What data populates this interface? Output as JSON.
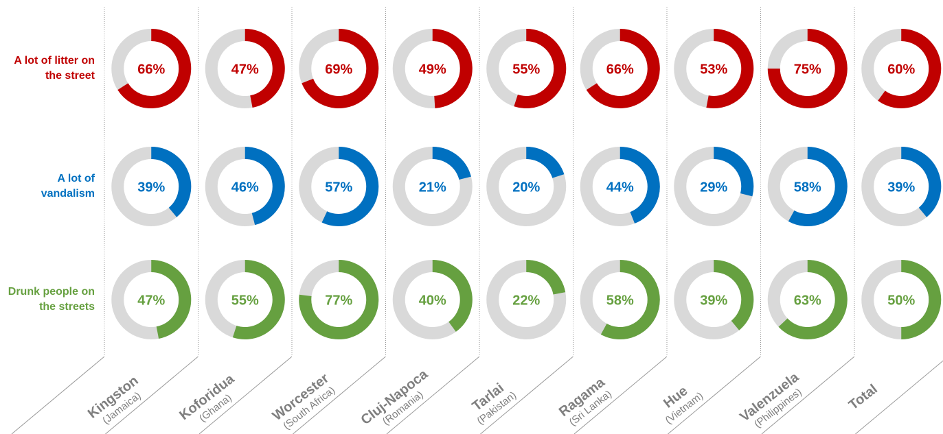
{
  "chart_data": {
    "type": "donut",
    "categories": [
      "Kingston",
      "Koforidua",
      "Worcester",
      "Cluj-Napoca",
      "Tarlai",
      "Ragama",
      "Hue",
      "Valenzuela",
      "Total"
    ],
    "subtitles": [
      "(Jamaica)",
      "(Ghana)",
      "(South Africa)",
      "(Romania)",
      "(Pakistan)",
      "(Sri Lanka)",
      "(Vietnam)",
      "(Philippines)",
      null
    ],
    "track_color": "#d9d9d9",
    "series": [
      {
        "name": "A lot of litter on the street",
        "color": "#c00000",
        "values": [
          66,
          47,
          69,
          49,
          55,
          66,
          53,
          75,
          60
        ],
        "value_labels": [
          "66%",
          "47%",
          "69%",
          "49%",
          "55%",
          "66%",
          "53%",
          "75%",
          "60%"
        ]
      },
      {
        "name": "A lot of vandalism",
        "color": "#0070c0",
        "values": [
          39,
          46,
          57,
          21,
          20,
          44,
          29,
          58,
          39
        ],
        "value_labels": [
          "39%",
          "46%",
          "57%",
          "21%",
          "20%",
          "44%",
          "29%",
          "58%",
          "39%"
        ]
      },
      {
        "name": "Drunk people on the streets",
        "color": "#66a040",
        "values": [
          47,
          55,
          77,
          40,
          22,
          58,
          39,
          63,
          50
        ],
        "value_labels": [
          "47%",
          "55%",
          "77%",
          "40%",
          "22%",
          "58%",
          "39%",
          "63%",
          "50%"
        ]
      }
    ]
  }
}
